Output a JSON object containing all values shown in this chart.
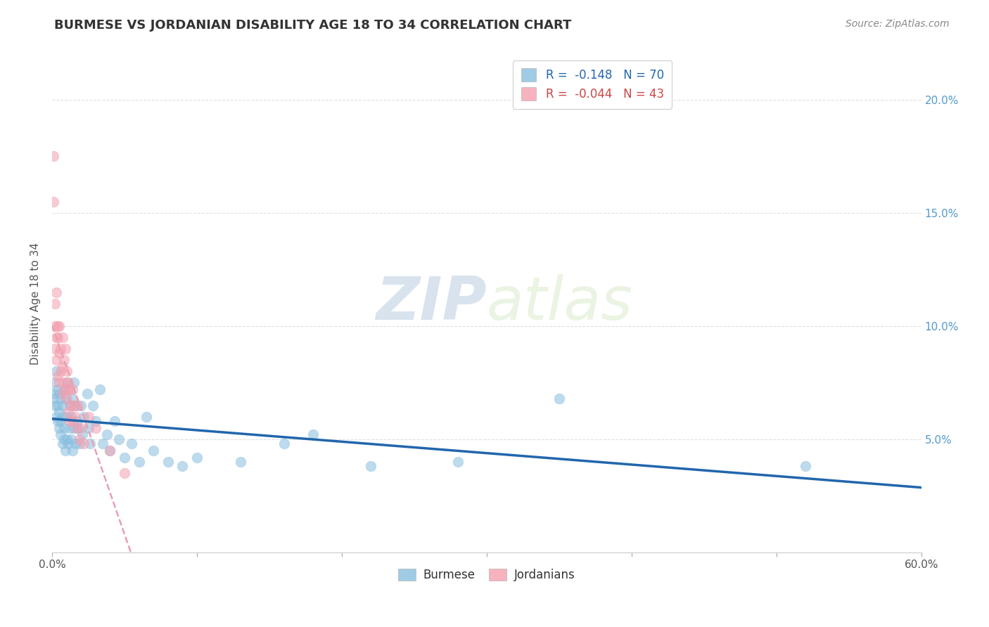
{
  "title": "BURMESE VS JORDANIAN DISABILITY AGE 18 TO 34 CORRELATION CHART",
  "source_text": "Source: ZipAtlas.com",
  "ylabel": "Disability Age 18 to 34",
  "xlim": [
    0.0,
    0.6
  ],
  "ylim": [
    0.0,
    0.22
  ],
  "xticks": [
    0.0,
    0.1,
    0.2,
    0.3,
    0.4,
    0.5,
    0.6
  ],
  "xticklabels": [
    "0.0%",
    "",
    "",
    "",
    "",
    "",
    "60.0%"
  ],
  "yticks": [
    0.0,
    0.05,
    0.1,
    0.15,
    0.2
  ],
  "yticklabels_left": [
    "",
    "",
    "",
    "",
    ""
  ],
  "yticklabels_right": [
    "",
    "5.0%",
    "10.0%",
    "15.0%",
    "20.0%"
  ],
  "burmese_color": "#89bfdf",
  "jordanian_color": "#f4a0b0",
  "trendline_burmese_color": "#2166ac",
  "trendline_jordanian_color": "#e8a0b0",
  "watermark_zip": "ZIP",
  "watermark_atlas": "atlas",
  "legend_R_burmese": "R =  -0.148",
  "legend_N_burmese": "N = 70",
  "legend_R_jordanian": "R =  -0.044",
  "legend_N_jordanian": "N = 43",
  "burmese_x": [
    0.001,
    0.001,
    0.002,
    0.002,
    0.003,
    0.003,
    0.004,
    0.004,
    0.004,
    0.005,
    0.005,
    0.005,
    0.006,
    0.006,
    0.006,
    0.007,
    0.007,
    0.007,
    0.008,
    0.008,
    0.008,
    0.009,
    0.009,
    0.01,
    0.01,
    0.01,
    0.011,
    0.011,
    0.012,
    0.012,
    0.013,
    0.013,
    0.014,
    0.014,
    0.015,
    0.015,
    0.016,
    0.016,
    0.017,
    0.018,
    0.019,
    0.02,
    0.021,
    0.022,
    0.024,
    0.025,
    0.026,
    0.028,
    0.03,
    0.033,
    0.035,
    0.038,
    0.04,
    0.043,
    0.046,
    0.05,
    0.055,
    0.06,
    0.065,
    0.07,
    0.08,
    0.09,
    0.1,
    0.13,
    0.16,
    0.18,
    0.22,
    0.28,
    0.35,
    0.52
  ],
  "burmese_y": [
    0.07,
    0.068,
    0.075,
    0.065,
    0.08,
    0.06,
    0.072,
    0.058,
    0.065,
    0.07,
    0.062,
    0.055,
    0.068,
    0.058,
    0.052,
    0.065,
    0.06,
    0.048,
    0.072,
    0.055,
    0.05,
    0.068,
    0.045,
    0.075,
    0.06,
    0.05,
    0.072,
    0.048,
    0.065,
    0.055,
    0.06,
    0.05,
    0.068,
    0.045,
    0.075,
    0.055,
    0.065,
    0.048,
    0.058,
    0.055,
    0.048,
    0.065,
    0.052,
    0.06,
    0.07,
    0.055,
    0.048,
    0.065,
    0.058,
    0.072,
    0.048,
    0.052,
    0.045,
    0.058,
    0.05,
    0.042,
    0.048,
    0.04,
    0.06,
    0.045,
    0.04,
    0.038,
    0.042,
    0.04,
    0.048,
    0.052,
    0.038,
    0.04,
    0.068,
    0.038
  ],
  "jordanian_x": [
    0.001,
    0.001,
    0.002,
    0.002,
    0.002,
    0.003,
    0.003,
    0.003,
    0.004,
    0.004,
    0.004,
    0.005,
    0.005,
    0.005,
    0.006,
    0.006,
    0.007,
    0.007,
    0.007,
    0.008,
    0.008,
    0.009,
    0.009,
    0.01,
    0.01,
    0.011,
    0.011,
    0.012,
    0.012,
    0.013,
    0.014,
    0.014,
    0.015,
    0.016,
    0.017,
    0.018,
    0.019,
    0.02,
    0.022,
    0.025,
    0.03,
    0.04,
    0.05
  ],
  "jordanian_y": [
    0.175,
    0.155,
    0.11,
    0.1,
    0.09,
    0.115,
    0.095,
    0.085,
    0.1,
    0.095,
    0.078,
    0.1,
    0.088,
    0.075,
    0.09,
    0.08,
    0.095,
    0.082,
    0.07,
    0.085,
    0.075,
    0.09,
    0.072,
    0.08,
    0.068,
    0.075,
    0.062,
    0.072,
    0.058,
    0.065,
    0.072,
    0.058,
    0.065,
    0.06,
    0.055,
    0.065,
    0.05,
    0.055,
    0.048,
    0.06,
    0.055,
    0.045,
    0.035
  ]
}
